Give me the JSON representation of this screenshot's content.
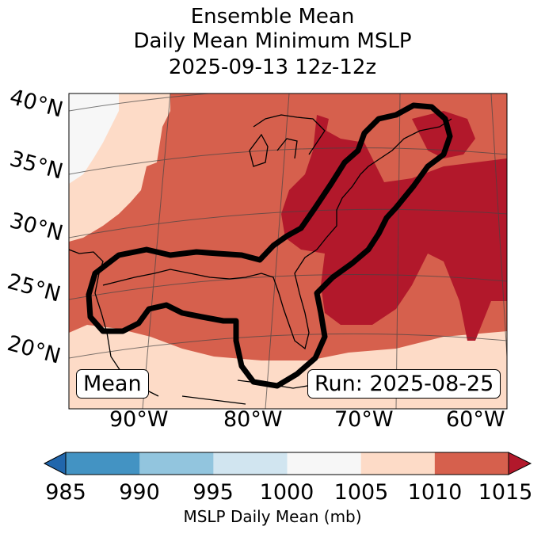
{
  "title": {
    "line1": "Ensemble Mean",
    "line2": "Daily Mean Minimum MSLP",
    "line3": "2025-09-13 12z-12z"
  },
  "map": {
    "lat_labels": [
      "40°N",
      "35°N",
      "30°N",
      "25°N",
      "20°N"
    ],
    "lon_labels": [
      "90°W",
      "80°W",
      "70°W",
      "60°W"
    ],
    "mean_label": "Mean",
    "run_label": "Run: 2025-08-25",
    "fill_levels_mb": [
      {
        "range": "1000-1005",
        "color": "#f7f7f7"
      },
      {
        "range": "1005-1010",
        "color": "#fddbc7"
      },
      {
        "range": "1010-1015",
        "color": "#d6604d"
      },
      {
        "range": ">1015",
        "color": "#b2182b"
      }
    ],
    "outline_color": "#000000"
  },
  "colorbar": {
    "ticks": [
      "985",
      "990",
      "995",
      "1000",
      "1005",
      "1010",
      "1015"
    ],
    "colors": [
      "#4393c3",
      "#92c5de",
      "#d1e5f0",
      "#f7f7f7",
      "#fddbc7",
      "#d6604d"
    ],
    "under_color": "#2166ac",
    "over_color": "#b2182b",
    "label": "MSLP Daily Mean (mb)"
  }
}
